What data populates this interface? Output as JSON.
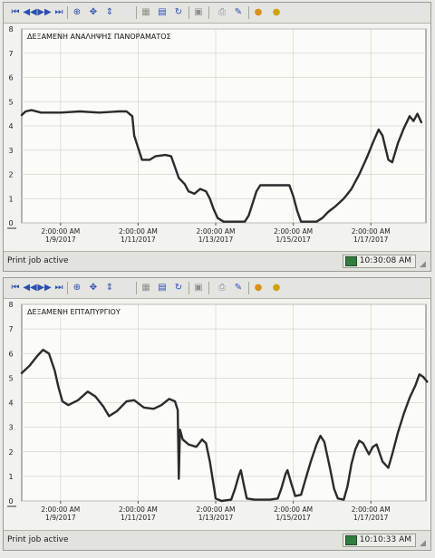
{
  "panels": [
    {
      "title": "ΔΕΞΑΜΕΝΗ ΑΝΑΛΗΨΗΣ ΠΑΝΟΡΑΜΑΤΟΣ",
      "status_text": "Print job active",
      "status_time": "10:30:08 AM",
      "toolbar_icons": [
        "first-page-icon",
        "previous-icon",
        "next-icon",
        "last-page-icon",
        "zoom-icon",
        "pan-icon",
        "scale-icon",
        "grid-icon",
        "table-icon",
        "history-icon",
        "disabled-icon",
        "print-icon",
        "export-icon",
        "add-pen-icon",
        "remove-pen-icon"
      ],
      "chart_data": {
        "type": "line",
        "title": "ΔΕΞΑΜΕΝΗ ΑΝΑΛΗΨΗΣ ΠΑΝΟΡΑΜΑΤΟΣ",
        "xlim": [
          0,
          10
        ],
        "ylim": [
          0,
          8
        ],
        "y_ticks": [
          0,
          1,
          2,
          3,
          4,
          5,
          6,
          7,
          8
        ],
        "x_ticks": [
          {
            "x": 1,
            "time": "2:00:00 AM",
            "date": "1/9/2017"
          },
          {
            "x": 3,
            "time": "2:00:00 AM",
            "date": "1/11/2017"
          },
          {
            "x": 5,
            "time": "2:00:00 AM",
            "date": "1/13/2017"
          },
          {
            "x": 7,
            "time": "2:00:00 AM",
            "date": "1/15/2017"
          },
          {
            "x": 9,
            "time": "2:00:00 AM",
            "date": "1/17/2017"
          }
        ],
        "grid": true,
        "line_color": "#2b2b2b",
        "points": [
          [
            0,
            4.45
          ],
          [
            0.1,
            4.6
          ],
          [
            0.25,
            4.65
          ],
          [
            0.5,
            4.55
          ],
          [
            1.0,
            4.55
          ],
          [
            1.5,
            4.6
          ],
          [
            2.0,
            4.55
          ],
          [
            2.5,
            4.6
          ],
          [
            2.7,
            4.6
          ],
          [
            2.85,
            4.4
          ],
          [
            2.9,
            3.6
          ],
          [
            3.0,
            3.1
          ],
          [
            3.1,
            2.6
          ],
          [
            3.3,
            2.6
          ],
          [
            3.45,
            2.75
          ],
          [
            3.7,
            2.8
          ],
          [
            3.85,
            2.75
          ],
          [
            3.95,
            2.3
          ],
          [
            4.05,
            1.85
          ],
          [
            4.2,
            1.6
          ],
          [
            4.3,
            1.3
          ],
          [
            4.45,
            1.2
          ],
          [
            4.6,
            1.4
          ],
          [
            4.75,
            1.3
          ],
          [
            4.85,
            1.0
          ],
          [
            4.95,
            0.55
          ],
          [
            5.05,
            0.2
          ],
          [
            5.2,
            0.05
          ],
          [
            5.5,
            0.05
          ],
          [
            5.75,
            0.05
          ],
          [
            5.85,
            0.3
          ],
          [
            5.95,
            0.8
          ],
          [
            6.05,
            1.3
          ],
          [
            6.15,
            1.55
          ],
          [
            6.5,
            1.55
          ],
          [
            6.9,
            1.55
          ],
          [
            7.0,
            1.1
          ],
          [
            7.1,
            0.5
          ],
          [
            7.2,
            0.05
          ],
          [
            7.6,
            0.05
          ],
          [
            7.75,
            0.2
          ],
          [
            7.9,
            0.45
          ],
          [
            8.1,
            0.7
          ],
          [
            8.3,
            1.0
          ],
          [
            8.5,
            1.4
          ],
          [
            8.7,
            2.0
          ],
          [
            8.9,
            2.7
          ],
          [
            9.05,
            3.3
          ],
          [
            9.2,
            3.85
          ],
          [
            9.3,
            3.6
          ],
          [
            9.45,
            2.6
          ],
          [
            9.55,
            2.5
          ],
          [
            9.7,
            3.3
          ],
          [
            9.85,
            3.9
          ],
          [
            10.0,
            4.4
          ],
          [
            10.1,
            4.2
          ],
          [
            10.2,
            4.5
          ],
          [
            10.3,
            4.15
          ]
        ]
      }
    },
    {
      "title": "ΔΕΞΑΜΕΝΗ ΕΠΤΑΠΥΡΓΙΟΥ",
      "status_text": "Print job active",
      "status_time": "10:10:33 AM",
      "toolbar_icons": [
        "first-page-icon",
        "previous-icon",
        "next-icon",
        "last-page-icon",
        "zoom-icon",
        "pan-icon",
        "scale-icon",
        "grid-icon",
        "table-icon",
        "history-icon",
        "disabled-icon",
        "print-icon",
        "export-icon",
        "add-pen-icon",
        "remove-pen-icon"
      ],
      "chart_data": {
        "type": "line",
        "title": "ΔΕΞΑΜΕΝΗ ΕΠΤΑΠΥΡΓΙΟΥ",
        "xlim": [
          0,
          10
        ],
        "ylim": [
          0,
          8
        ],
        "y_ticks": [
          0,
          1,
          2,
          3,
          4,
          5,
          6,
          7,
          8
        ],
        "x_ticks": [
          {
            "x": 1,
            "time": "2:00:00 AM",
            "date": "1/9/2017"
          },
          {
            "x": 3,
            "time": "2:00:00 AM",
            "date": "1/11/2017"
          },
          {
            "x": 5,
            "time": "2:00:00 AM",
            "date": "1/13/2017"
          },
          {
            "x": 7,
            "time": "2:00:00 AM",
            "date": "1/15/2017"
          },
          {
            "x": 9,
            "time": "2:00:00 AM",
            "date": "1/17/2017"
          }
        ],
        "grid": true,
        "line_color": "#2b2b2b",
        "points": [
          [
            0,
            5.2
          ],
          [
            0.2,
            5.5
          ],
          [
            0.4,
            5.9
          ],
          [
            0.55,
            6.15
          ],
          [
            0.7,
            6.0
          ],
          [
            0.85,
            5.3
          ],
          [
            0.95,
            4.6
          ],
          [
            1.05,
            4.05
          ],
          [
            1.2,
            3.9
          ],
          [
            1.45,
            4.1
          ],
          [
            1.7,
            4.45
          ],
          [
            1.9,
            4.25
          ],
          [
            2.1,
            3.85
          ],
          [
            2.25,
            3.45
          ],
          [
            2.45,
            3.65
          ],
          [
            2.7,
            4.05
          ],
          [
            2.9,
            4.1
          ],
          [
            3.15,
            3.8
          ],
          [
            3.4,
            3.75
          ],
          [
            3.6,
            3.9
          ],
          [
            3.8,
            4.15
          ],
          [
            3.95,
            4.05
          ],
          [
            4.02,
            3.7
          ],
          [
            4.05,
            0.9
          ],
          [
            4.08,
            2.9
          ],
          [
            4.15,
            2.5
          ],
          [
            4.3,
            2.3
          ],
          [
            4.5,
            2.2
          ],
          [
            4.65,
            2.5
          ],
          [
            4.75,
            2.35
          ],
          [
            4.85,
            1.6
          ],
          [
            4.95,
            0.6
          ],
          [
            5.0,
            0.1
          ],
          [
            5.15,
            0.0
          ],
          [
            5.4,
            0.05
          ],
          [
            5.5,
            0.5
          ],
          [
            5.6,
            1.05
          ],
          [
            5.65,
            1.25
          ],
          [
            5.72,
            0.7
          ],
          [
            5.8,
            0.1
          ],
          [
            6.0,
            0.05
          ],
          [
            6.4,
            0.05
          ],
          [
            6.6,
            0.1
          ],
          [
            6.7,
            0.55
          ],
          [
            6.8,
            1.1
          ],
          [
            6.85,
            1.25
          ],
          [
            6.95,
            0.7
          ],
          [
            7.05,
            0.2
          ],
          [
            7.2,
            0.25
          ],
          [
            7.3,
            0.8
          ],
          [
            7.45,
            1.6
          ],
          [
            7.6,
            2.3
          ],
          [
            7.7,
            2.65
          ],
          [
            7.8,
            2.4
          ],
          [
            7.95,
            1.3
          ],
          [
            8.05,
            0.5
          ],
          [
            8.15,
            0.1
          ],
          [
            8.3,
            0.05
          ],
          [
            8.4,
            0.6
          ],
          [
            8.5,
            1.5
          ],
          [
            8.6,
            2.1
          ],
          [
            8.7,
            2.45
          ],
          [
            8.8,
            2.35
          ],
          [
            8.95,
            1.9
          ],
          [
            9.05,
            2.2
          ],
          [
            9.15,
            2.3
          ],
          [
            9.3,
            1.6
          ],
          [
            9.45,
            1.35
          ],
          [
            9.55,
            1.9
          ],
          [
            9.7,
            2.8
          ],
          [
            9.85,
            3.55
          ],
          [
            10.0,
            4.2
          ],
          [
            10.15,
            4.7
          ],
          [
            10.25,
            5.15
          ],
          [
            10.35,
            5.05
          ],
          [
            10.45,
            4.85
          ]
        ]
      }
    }
  ]
}
